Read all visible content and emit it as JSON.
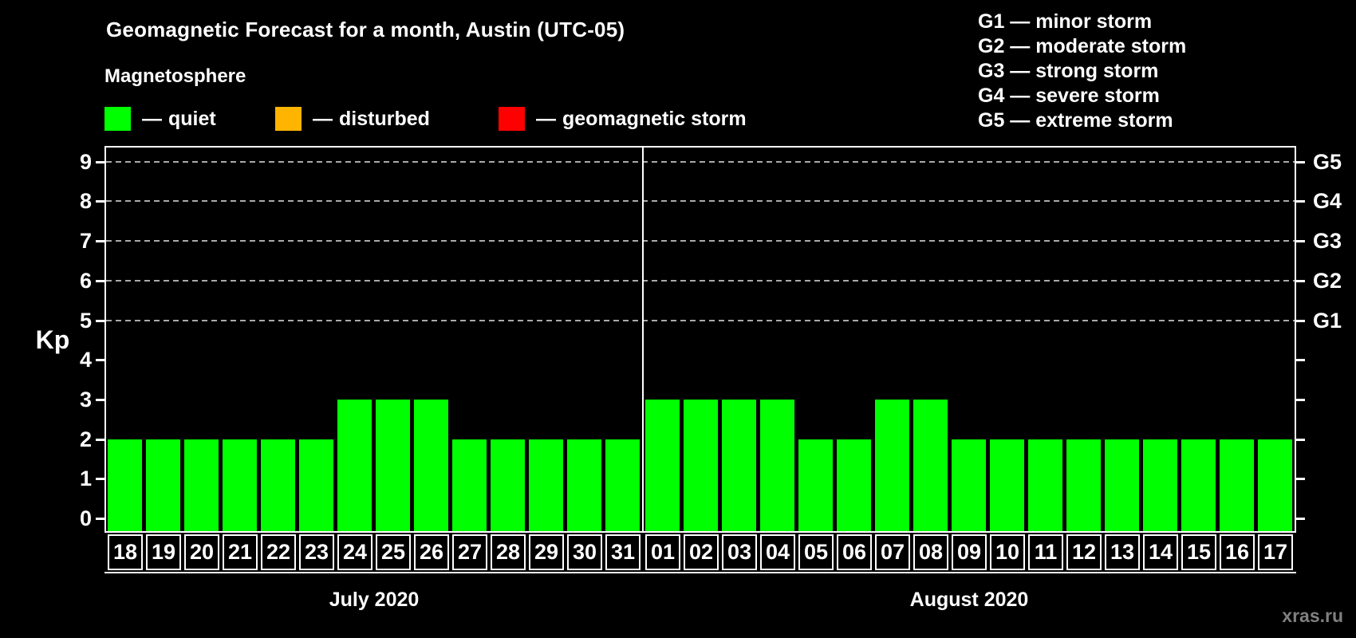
{
  "header": {
    "title": "Geomagnetic Forecast for a month, Austin (UTC-05)"
  },
  "legend": {
    "title": "Magnetosphere",
    "separator": "—",
    "items": [
      {
        "label": "quiet",
        "color": "#00ff00"
      },
      {
        "label": "disturbed",
        "color": "#ffb400"
      },
      {
        "label": "geomagnetic storm",
        "color": "#ff0000"
      }
    ]
  },
  "g_scale_legend": {
    "separator": "—",
    "items": [
      {
        "code": "G1",
        "desc": "minor storm"
      },
      {
        "code": "G2",
        "desc": "moderate storm"
      },
      {
        "code": "G3",
        "desc": "strong storm"
      },
      {
        "code": "G4",
        "desc": "severe storm"
      },
      {
        "code": "G5",
        "desc": "extreme storm"
      }
    ]
  },
  "y_axis": {
    "title": "Kp",
    "ticks": [
      "0",
      "1",
      "2",
      "3",
      "4",
      "5",
      "6",
      "7",
      "8",
      "9"
    ]
  },
  "right_axis": {
    "labels": [
      {
        "code": "G1",
        "kp": 5
      },
      {
        "code": "G2",
        "kp": 6
      },
      {
        "code": "G3",
        "kp": 7
      },
      {
        "code": "G4",
        "kp": 8
      },
      {
        "code": "G5",
        "kp": 9
      }
    ]
  },
  "watermark": "xras.ru",
  "chart_data": {
    "type": "bar",
    "title": "Geomagnetic Forecast for a month, Austin (UTC-05)",
    "ylabel": "Kp",
    "ylim": [
      0,
      9
    ],
    "grid_levels": [
      5,
      6,
      7,
      8,
      9
    ],
    "bar_colors": {
      "quiet": "#00ff00",
      "disturbed": "#ffb400",
      "storm": "#ff0000"
    },
    "color_rules": {
      "disturbed_kp": 4,
      "storm_min_kp": 5
    },
    "legend_position": "top",
    "months": [
      {
        "label": "July 2020",
        "categories": [
          "18",
          "19",
          "20",
          "21",
          "22",
          "23",
          "24",
          "25",
          "26",
          "27",
          "28",
          "29",
          "30",
          "31"
        ],
        "values": [
          2,
          2,
          2,
          2,
          2,
          2,
          3,
          3,
          3,
          2,
          2,
          2,
          2,
          2
        ]
      },
      {
        "label": "August 2020",
        "categories": [
          "01",
          "02",
          "03",
          "04",
          "05",
          "06",
          "07",
          "08",
          "09",
          "10",
          "11",
          "12",
          "13",
          "14",
          "15",
          "16",
          "17"
        ],
        "values": [
          3,
          3,
          3,
          3,
          2,
          2,
          3,
          3,
          2,
          2,
          2,
          2,
          2,
          2,
          2,
          2,
          2
        ]
      }
    ]
  }
}
